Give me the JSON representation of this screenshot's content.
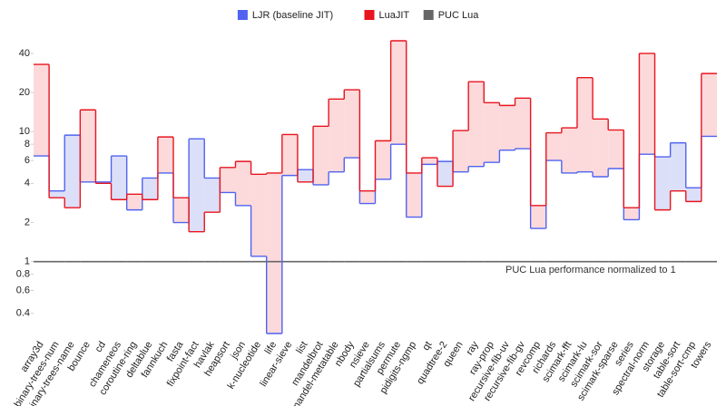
{
  "chart_data": {
    "type": "stepped-area",
    "categories": [
      "array3d",
      "binary-trees-num",
      "binary-trees-name",
      "bounce",
      "cd",
      "chameneos",
      "coroutine-ring",
      "deltablue",
      "fannkuch",
      "fasta",
      "fixpoint-fact",
      "havlak",
      "heapsort",
      "json",
      "k-nucleotide",
      "life",
      "linear-sieve",
      "list",
      "mandelbrot",
      "mandel-metatable",
      "nbody",
      "nsieve",
      "partialsums",
      "permute",
      "pidigits-ngmp",
      "qt",
      "quadtree-2",
      "queen",
      "ray",
      "ray-prop",
      "recursive-fib-uv",
      "recursive-fib-gv",
      "revcomp",
      "richards",
      "scimark-fft",
      "scimark-lu",
      "scimark-sor",
      "scimark-sparse",
      "series",
      "spectral-norm",
      "storage",
      "table-sort",
      "table-sort-cmp",
      "towers"
    ],
    "series": [
      {
        "name": "LJR (baseline JIT)",
        "color": "#4f63f0",
        "fill": "#dcdff8",
        "values": [
          6.5,
          3.5,
          9.4,
          4.1,
          4.1,
          6.5,
          2.5,
          4.4,
          4.8,
          2.0,
          8.8,
          4.4,
          3.4,
          2.7,
          1.1,
          0.28,
          4.6,
          5.1,
          3.9,
          4.9,
          6.3,
          2.8,
          4.3,
          8.0,
          2.2,
          5.6,
          5.9,
          4.9,
          5.4,
          5.8,
          7.2,
          7.4,
          1.8,
          6.0,
          4.8,
          4.9,
          4.5,
          5.2,
          2.1,
          6.7,
          6.4,
          8.2,
          3.7,
          9.2
        ]
      },
      {
        "name": "LuaJIT",
        "color": "#e8141e",
        "fill": "#fcd9da",
        "values": [
          32.9,
          3.1,
          2.6,
          14.7,
          4.0,
          3.0,
          3.3,
          3.0,
          9.1,
          3.1,
          1.7,
          2.4,
          5.3,
          5.9,
          4.7,
          4.8,
          9.5,
          4.1,
          11.0,
          17.8,
          21,
          3.5,
          8.5,
          50,
          4.8,
          6.3,
          3.8,
          10.2,
          24.2,
          16.7,
          15.9,
          18.1,
          2.7,
          9.8,
          10.7,
          26,
          12.5,
          10.3,
          2.6,
          40,
          2.5,
          3.5,
          2.9,
          28
        ]
      },
      {
        "name": "PUC Lua",
        "color": "#666666",
        "values": [
          1,
          1,
          1,
          1,
          1,
          1,
          1,
          1,
          1,
          1,
          1,
          1,
          1,
          1,
          1,
          1,
          1,
          1,
          1,
          1,
          1,
          1,
          1,
          1,
          1,
          1,
          1,
          1,
          1,
          1,
          1,
          1,
          1,
          1,
          1,
          1,
          1,
          1,
          1,
          1,
          1,
          1,
          1,
          1
        ]
      }
    ],
    "annotation": "PUC Lua performance normalized to 1",
    "ylim": [
      0.28,
      50
    ],
    "yticks": [
      40,
      20,
      10,
      8,
      6,
      4,
      2,
      1,
      0.8,
      0.6,
      0.4
    ],
    "log_scale": true,
    "legend": "top"
  }
}
